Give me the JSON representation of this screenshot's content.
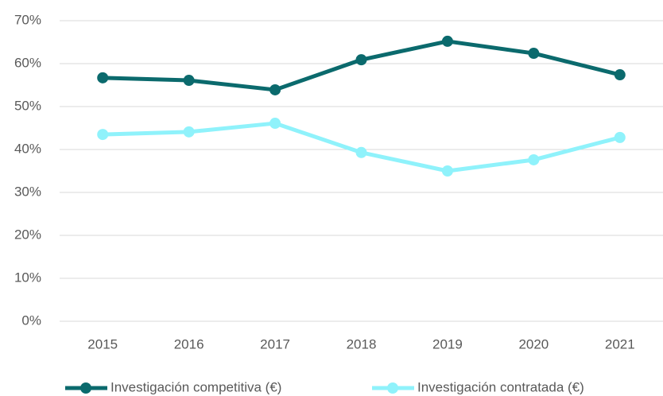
{
  "chart_data": {
    "type": "line",
    "categories": [
      "2015",
      "2016",
      "2017",
      "2018",
      "2019",
      "2020",
      "2021"
    ],
    "series": [
      {
        "name": "Investigación competitiva (€)",
        "color": "#0b6a6d",
        "values": [
          56.7,
          56.1,
          53.9,
          60.9,
          65.2,
          62.4,
          57.4
        ]
      },
      {
        "name": "Investigación contratada (€)",
        "color": "#8ff2fb",
        "values": [
          43.5,
          44.1,
          46.1,
          39.3,
          35.0,
          37.6,
          42.8
        ]
      }
    ],
    "ylim": [
      0,
      70
    ],
    "yticks": [
      {
        "value": 0,
        "label": "0%"
      },
      {
        "value": 10,
        "label": "10%"
      },
      {
        "value": 20,
        "label": "20%"
      },
      {
        "value": 30,
        "label": "30%"
      },
      {
        "value": 40,
        "label": "40%"
      },
      {
        "value": 50,
        "label": "50%"
      },
      {
        "value": 60,
        "label": "60%"
      },
      {
        "value": 70,
        "label": "70%"
      }
    ],
    "grid": true,
    "legend": "bottom"
  }
}
